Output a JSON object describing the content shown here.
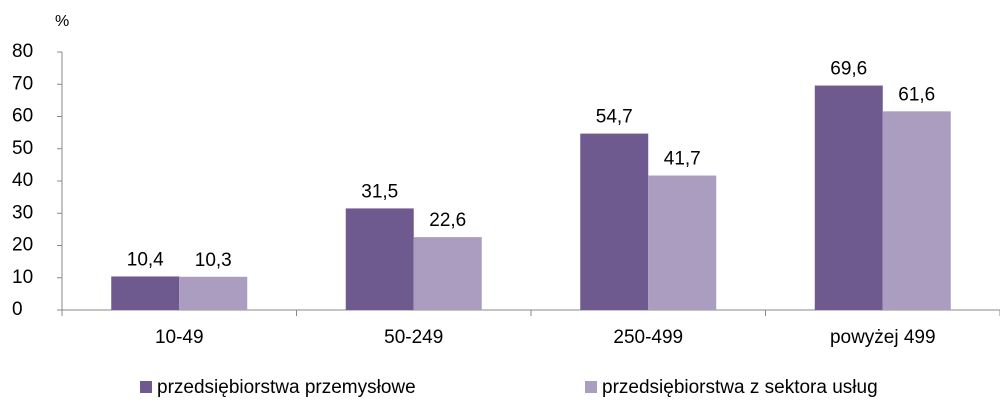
{
  "chart_data": {
    "type": "bar",
    "y_label": "%",
    "categories": [
      "10-49",
      "50-249",
      "250-499",
      "powyżej 499"
    ],
    "series": [
      {
        "name": "przedsiębiorstwa przemysłowe",
        "color": "#6f5a8f",
        "values": [
          10.4,
          31.5,
          54.7,
          69.6
        ],
        "value_labels": [
          "10,4",
          "31,5",
          "54,7",
          "69,6"
        ]
      },
      {
        "name": "przedsiębiorstwa z sektora usług",
        "color": "#aa9dbf",
        "values": [
          10.3,
          22.6,
          41.7,
          61.6
        ],
        "value_labels": [
          "10,3",
          "22,6",
          "41,7",
          "61,6"
        ]
      }
    ],
    "ylim": [
      0,
      80
    ],
    "yticks": [
      0,
      10,
      20,
      30,
      40,
      50,
      60,
      70,
      80
    ],
    "grid": false,
    "legend": "bottom"
  }
}
